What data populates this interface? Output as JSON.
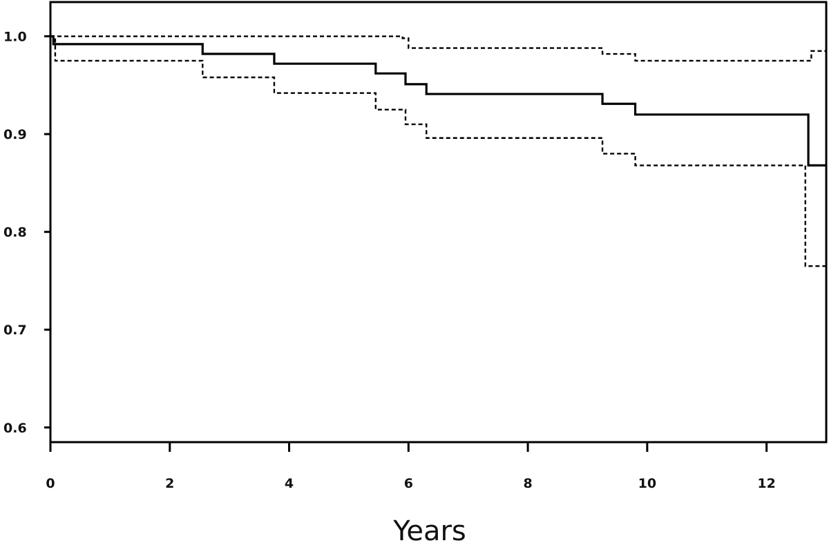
{
  "chart_data": {
    "type": "line",
    "title": "",
    "xlabel": "Years",
    "ylabel": "",
    "xlim": [
      0,
      13
    ],
    "ylim": [
      0.585,
      1.035
    ],
    "x_ticks": [
      0,
      2,
      4,
      6,
      8,
      10,
      12
    ],
    "y_ticks": [
      0.6,
      0.7,
      0.8,
      0.9,
      1.0
    ],
    "x_tick_labels": [
      "0",
      "2",
      "4",
      "6",
      "8",
      "10",
      "12"
    ],
    "y_tick_labels": [
      "0.6",
      "0.7",
      "0.8",
      "0.9",
      "1.0"
    ],
    "grid": false,
    "legend": "none",
    "step": true,
    "series": [
      {
        "style": "solid",
        "color": "#000000",
        "points": [
          [
            0,
            1.0
          ],
          [
            0.05,
            0.992
          ],
          [
            2.55,
            0.982
          ],
          [
            3.75,
            0.972
          ],
          [
            5.45,
            0.962
          ],
          [
            5.95,
            0.951
          ],
          [
            6.3,
            0.941
          ],
          [
            9.25,
            0.931
          ],
          [
            9.8,
            0.92
          ],
          [
            12.7,
            0.868
          ],
          [
            13,
            0.868
          ]
        ]
      },
      {
        "style": "dashed",
        "color": "#000000",
        "points": [
          [
            0,
            1.0
          ],
          [
            5.9,
            0.998
          ],
          [
            6.0,
            0.988
          ],
          [
            9.25,
            0.982
          ],
          [
            9.8,
            0.975
          ],
          [
            12.75,
            0.985
          ],
          [
            13,
            0.985
          ]
        ]
      },
      {
        "style": "dashed",
        "color": "#000000",
        "points": [
          [
            0,
            1.0
          ],
          [
            0.08,
            0.975
          ],
          [
            2.55,
            0.958
          ],
          [
            3.75,
            0.942
          ],
          [
            5.45,
            0.925
          ],
          [
            5.95,
            0.91
          ],
          [
            6.3,
            0.896
          ],
          [
            9.25,
            0.88
          ],
          [
            9.8,
            0.868
          ],
          [
            12.65,
            0.765
          ],
          [
            13,
            0.765
          ]
        ]
      }
    ]
  }
}
